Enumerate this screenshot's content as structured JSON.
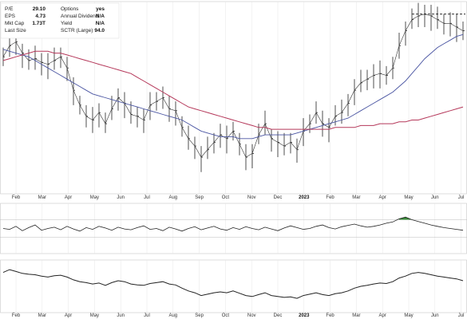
{
  "fundamentals": [
    {
      "label": "P/E",
      "value": "29.10"
    },
    {
      "label": "EPS",
      "value": "4.73"
    },
    {
      "label": "Mkt Cap",
      "value": "1.73T"
    },
    {
      "label": "Last Size",
      "value": ""
    },
    {
      "label": "Options",
      "value": "yes"
    },
    {
      "label": "Annual Dividend",
      "value": "N/A"
    },
    {
      "label": "Yield",
      "value": "N/A"
    },
    {
      "label": "SCTR (Large)",
      "value": "94.0"
    }
  ],
  "chart_data": [
    {
      "type": "line",
      "panel": "price",
      "title": "",
      "xlabel": "",
      "ylabel": "",
      "x_ticks": [
        "Feb",
        "Mar",
        "Apr",
        "May",
        "Jun",
        "Jul",
        "Aug",
        "Sep",
        "Oct",
        "Nov",
        "Dec",
        "2023",
        "Feb",
        "Mar",
        "Apr",
        "May",
        "Jun",
        "Jul"
      ],
      "ylim": [
        0,
        100
      ],
      "series": [
        {
          "role": "price-bars",
          "color": "#222222",
          "values": [
            72,
            78,
            80,
            74,
            70,
            71,
            69,
            68,
            70,
            72,
            66,
            54,
            46,
            40,
            38,
            42,
            36,
            44,
            50,
            47,
            41,
            40,
            38,
            46,
            48,
            50,
            44,
            43,
            34,
            28,
            24,
            18,
            22,
            26,
            30,
            28,
            32,
            25,
            18,
            20,
            30,
            36,
            28,
            26,
            24,
            26,
            22,
            32,
            36,
            42,
            36,
            34,
            40,
            42,
            47,
            54,
            58,
            60,
            62,
            63,
            62,
            66,
            78,
            86,
            92,
            94,
            95,
            94,
            92,
            90,
            90,
            88,
            86
          ]
        },
        {
          "role": "ma-50",
          "color": "#4a55a2",
          "values": [
            76,
            75,
            74,
            73,
            72,
            70,
            68,
            66,
            64,
            62,
            60,
            58,
            56,
            54,
            52,
            51,
            50,
            49,
            48,
            47,
            46,
            45,
            44,
            43,
            42,
            41,
            40,
            39,
            38,
            36,
            34,
            32,
            31,
            30,
            29,
            29,
            29,
            28,
            28,
            28,
            29,
            30,
            30,
            30,
            30,
            30,
            31,
            32,
            33,
            34,
            35,
            36,
            37,
            38,
            39,
            41,
            43,
            45,
            47,
            49,
            51,
            53,
            56,
            59,
            63,
            67,
            71,
            74,
            77,
            79,
            81,
            83,
            84
          ]
        },
        {
          "role": "ma-200",
          "color": "#b5385a",
          "values": [
            70,
            71,
            72,
            73,
            74,
            75,
            75,
            75,
            74,
            74,
            73,
            72,
            71,
            70,
            69,
            68,
            67,
            66,
            65,
            64,
            63,
            61,
            59,
            57,
            55,
            53,
            51,
            49,
            47,
            45,
            44,
            43,
            42,
            41,
            40,
            39,
            38,
            37,
            36,
            35,
            34,
            34,
            33,
            33,
            33,
            33,
            33,
            33,
            33,
            33,
            33,
            33,
            34,
            34,
            34,
            34,
            35,
            35,
            35,
            36,
            36,
            36,
            37,
            37,
            38,
            38,
            39,
            40,
            41,
            42,
            43,
            44,
            45
          ]
        }
      ],
      "annotations": [
        {
          "type": "dashed-resistance-line",
          "y": 95,
          "x_from": "May",
          "x_to": "Jul"
        }
      ]
    },
    {
      "type": "line",
      "panel": "oscillator",
      "title": "",
      "xlabel": "",
      "ylabel": "",
      "ylim": [
        0,
        100
      ],
      "reference_lines": [
        70,
        30
      ],
      "series": [
        {
          "role": "oscillator",
          "color": "#222222",
          "values": [
            50,
            48,
            55,
            45,
            52,
            58,
            46,
            50,
            53,
            47,
            55,
            49,
            44,
            52,
            48,
            55,
            51,
            46,
            53,
            49,
            47,
            52,
            56,
            48,
            50,
            45,
            53,
            49,
            44,
            50,
            54,
            47,
            51,
            55,
            49,
            46,
            52,
            48,
            54,
            50,
            47,
            53,
            49,
            45,
            51,
            56,
            52,
            48,
            50,
            55,
            58,
            52,
            49,
            54,
            57,
            60,
            56,
            53,
            55,
            58,
            62,
            65,
            72,
            76,
            70,
            66,
            62,
            58,
            55,
            52,
            50,
            48,
            46
          ]
        }
      ],
      "highlight": {
        "color": "#3a8a3a",
        "x_range_index": [
          62,
          65
        ]
      }
    },
    {
      "type": "line",
      "panel": "relative-strength",
      "title": "",
      "xlabel": "",
      "ylabel": "",
      "ylim": [
        0,
        100
      ],
      "series": [
        {
          "role": "relative-strength",
          "color": "#222222",
          "values": [
            80,
            86,
            82,
            78,
            76,
            75,
            72,
            70,
            73,
            74,
            70,
            64,
            60,
            58,
            55,
            57,
            52,
            58,
            62,
            60,
            55,
            53,
            52,
            56,
            58,
            60,
            55,
            53,
            46,
            40,
            36,
            30,
            33,
            36,
            38,
            36,
            40,
            35,
            30,
            28,
            32,
            36,
            30,
            28,
            26,
            27,
            24,
            30,
            33,
            36,
            32,
            30,
            34,
            36,
            40,
            46,
            50,
            52,
            55,
            57,
            56,
            60,
            68,
            72,
            78,
            80,
            78,
            75,
            72,
            70,
            68,
            66,
            62
          ]
        }
      ]
    }
  ]
}
